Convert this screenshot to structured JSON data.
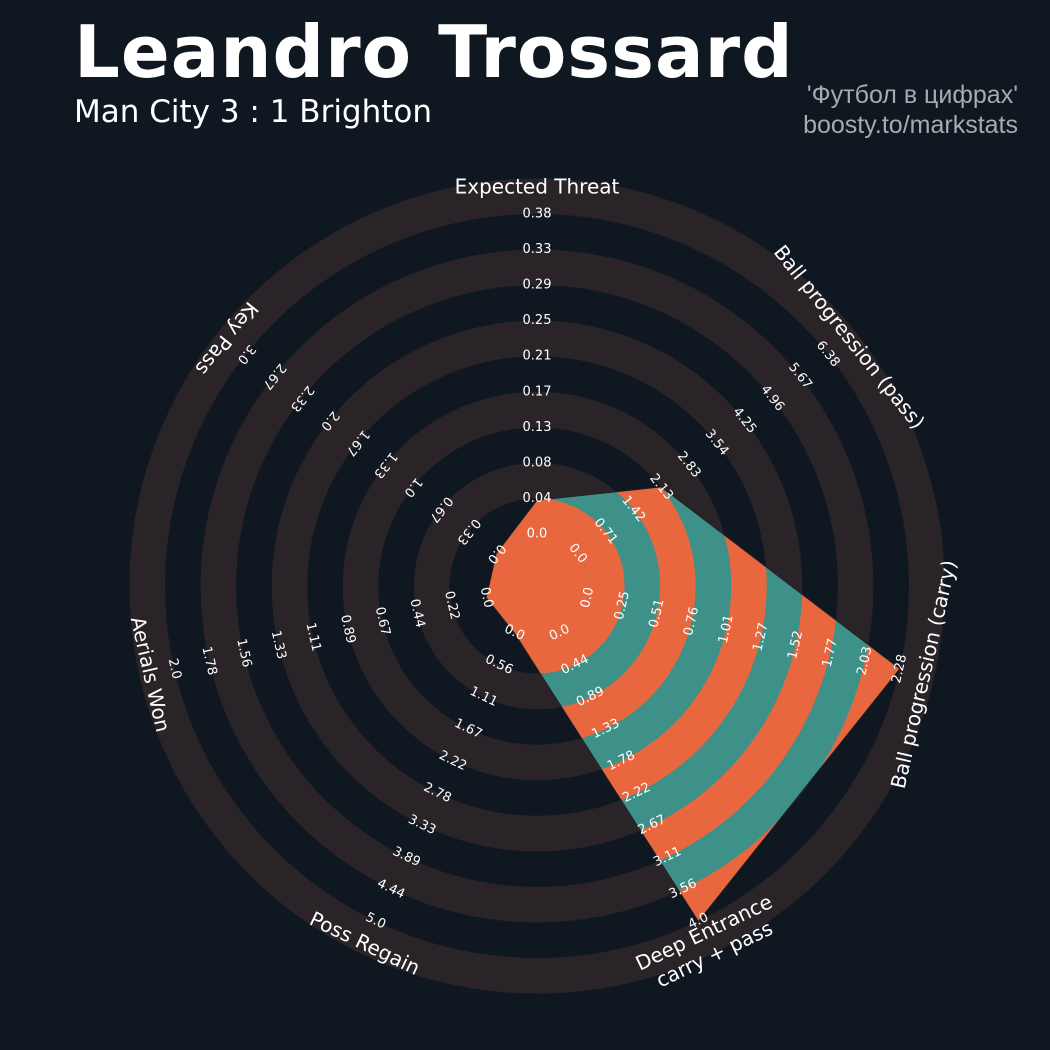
{
  "header": {
    "title": "Leandro Trossard",
    "subtitle": "Man City 3 : 1 Brighton",
    "credit_line1": "'Футбол в цифрах'",
    "credit_line2": "boosty.to/markstats"
  },
  "colors": {
    "background": "#0f1820",
    "ring": "#2a2328",
    "player_fill_a": "#e8673f",
    "player_fill_b": "#3d9189",
    "text": "#ffffff",
    "credit": "#a7abb0"
  },
  "chart_data": {
    "type": "radar",
    "title": "Leandro Trossard",
    "subtitle": "Man City 3 : 1 Brighton",
    "params": [
      {
        "label": [
          "Expected Threat"
        ],
        "min": 0,
        "max": 0.38,
        "value": 0.04,
        "ticks": [
          "0.0",
          "0.04",
          "0.08",
          "0.13",
          "0.17",
          "0.21",
          "0.25",
          "0.29",
          "0.33",
          "0.38"
        ]
      },
      {
        "label": [
          "Ball progression (pass)"
        ],
        "min": 0,
        "max": 6.38,
        "value": 2.13,
        "ticks": [
          "0.0",
          "0.71",
          "1.42",
          "2.13",
          "2.83",
          "3.54",
          "4.25",
          "4.96",
          "5.67",
          "6.38"
        ]
      },
      {
        "label": [
          "Ball progression (carry)"
        ],
        "min": 0,
        "max": 2.28,
        "value": 2.28,
        "ticks": [
          "0.0",
          "0.25",
          "0.51",
          "0.76",
          "1.01",
          "1.27",
          "1.52",
          "1.77",
          "2.03",
          "2.28"
        ]
      },
      {
        "label": [
          "Deep Entrance",
          "carry + pass"
        ],
        "min": 0,
        "max": 4.0,
        "value": 4.0,
        "ticks": [
          "0.0",
          "0.44",
          "0.89",
          "1.33",
          "1.78",
          "2.22",
          "2.67",
          "3.11",
          "3.56",
          "4.0"
        ]
      },
      {
        "label": [
          "Poss Regain"
        ],
        "min": 0,
        "max": 5.0,
        "value": 0.0,
        "ticks": [
          "0.0",
          "0.56",
          "1.11",
          "1.67",
          "2.22",
          "2.78",
          "3.33",
          "3.89",
          "4.44",
          "5.0"
        ]
      },
      {
        "label": [
          "Aerials Won"
        ],
        "min": 0,
        "max": 2.0,
        "value": 0.0,
        "ticks": [
          "0.0",
          "0.22",
          "0.44",
          "0.67",
          "0.89",
          "1.11",
          "1.33",
          "1.56",
          "1.78",
          "2.0"
        ]
      },
      {
        "label": [
          "Key Pass"
        ],
        "min": 0,
        "max": 3.0,
        "value": 0.0,
        "ticks": [
          "0.0",
          "0.33",
          "0.67",
          "1.0",
          "1.33",
          "1.67",
          "2.0",
          "2.33",
          "2.67",
          "3.0"
        ]
      }
    ]
  }
}
